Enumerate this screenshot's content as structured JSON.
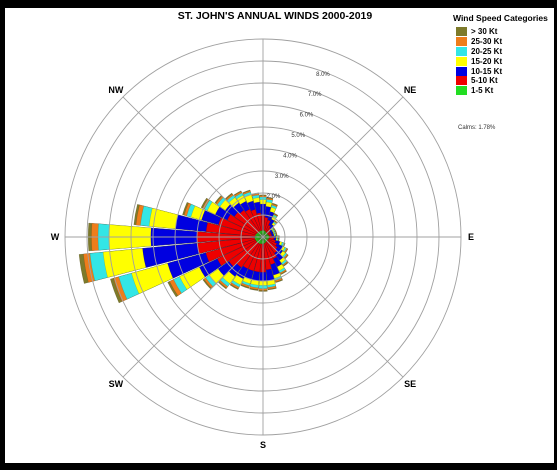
{
  "chart_data": {
    "type": "wind-rose",
    "title": "ST. JOHN'S ANNUAL WINDS 2000-2019",
    "legend_title": "Wind Speed Categories",
    "legend_position": "top-right",
    "calms_text": "Calms: 1.78%",
    "ring_labels": [
      "2.0%",
      "3.0%",
      "4.0%",
      "5.0%",
      "6.0%",
      "7.0%",
      "8.0%"
    ],
    "rings": [
      1,
      2,
      3,
      4,
      5,
      6,
      7,
      8,
      9
    ],
    "directions": [
      {
        "label": "NE",
        "angle": 45
      },
      {
        "label": "E",
        "angle": 90
      },
      {
        "label": "SE",
        "angle": 135
      },
      {
        "label": "S",
        "angle": 180
      },
      {
        "label": "SW",
        "angle": 225
      },
      {
        "label": "W",
        "angle": 270
      },
      {
        "label": "NW",
        "angle": 315
      }
    ],
    "categories": [
      {
        "name": "> 30 Kt",
        "color": "#7d7a2a"
      },
      {
        "name": "25-30 Kt",
        "color": "#ee7d1b"
      },
      {
        "name": "20-25 Kt",
        "color": "#33e6e6"
      },
      {
        "name": "15-20 Kt",
        "color": "#ffff00"
      },
      {
        "name": "10-15 Kt",
        "color": "#0000e0"
      },
      {
        "name": "5-10 Kt",
        "color": "#ee0000"
      },
      {
        "name": "1-5 Kt",
        "color": "#22dd22"
      }
    ],
    "sectors_deg": [
      0,
      10,
      20,
      30,
      40,
      50,
      60,
      70,
      80,
      90,
      100,
      110,
      120,
      130,
      140,
      150,
      160,
      170,
      180,
      190,
      200,
      210,
      220,
      230,
      240,
      250,
      260,
      270,
      280,
      290,
      300,
      310,
      320,
      330,
      340,
      350
    ],
    "series_cumulative_percent": [
      {
        "name": "1-5 Kt",
        "values": [
          0.3,
          0.3,
          0.28,
          0.26,
          0.24,
          0.24,
          0.24,
          0.26,
          0.28,
          0.28,
          0.28,
          0.26,
          0.24,
          0.24,
          0.24,
          0.26,
          0.28,
          0.3,
          0.3,
          0.32,
          0.32,
          0.34,
          0.34,
          0.36,
          0.36,
          0.36,
          0.38,
          0.38,
          0.36,
          0.34,
          0.32,
          0.3,
          0.3,
          0.3,
          0.3,
          0.3
        ]
      },
      {
        "name": "5-10 Kt",
        "values": [
          1.0,
          0.9,
          0.8,
          0.6,
          0.5,
          0.4,
          0.4,
          0.4,
          0.4,
          0.5,
          0.5,
          0.6,
          0.7,
          0.8,
          0.9,
          1.1,
          1.3,
          1.5,
          1.6,
          1.6,
          1.6,
          1.6,
          1.7,
          1.9,
          2.3,
          2.7,
          3.0,
          3.0,
          2.6,
          2.1,
          1.8,
          1.6,
          1.5,
          1.4,
          1.3,
          1.1
        ]
      },
      {
        "name": "10-15 Kt",
        "values": [
          1.5,
          1.4,
          1.2,
          0.9,
          0.7,
          0.5,
          0.5,
          0.5,
          0.5,
          0.6,
          0.6,
          0.8,
          1.0,
          1.1,
          1.3,
          1.5,
          1.8,
          2.0,
          2.0,
          2.0,
          2.0,
          2.1,
          2.2,
          2.5,
          3.2,
          4.5,
          5.5,
          5.1,
          4.0,
          2.9,
          2.4,
          2.1,
          1.9,
          1.8,
          1.7,
          1.6
        ]
      },
      {
        "name": "15-20 Kt",
        "values": [
          1.7,
          1.6,
          1.4,
          1.05,
          0.8,
          0.55,
          0.55,
          0.55,
          0.55,
          0.65,
          0.65,
          0.9,
          1.1,
          1.25,
          1.45,
          1.7,
          1.95,
          2.2,
          2.2,
          2.2,
          2.2,
          2.4,
          2.6,
          3.0,
          4.2,
          6.2,
          7.3,
          7.0,
          5.2,
          3.4,
          2.8,
          2.4,
          2.2,
          2.1,
          2.0,
          1.8
        ]
      },
      {
        "name": "20-25 Kt",
        "values": [
          1.82,
          1.72,
          1.5,
          1.12,
          0.86,
          0.6,
          0.6,
          0.6,
          0.6,
          0.7,
          0.7,
          0.98,
          1.18,
          1.33,
          1.55,
          1.8,
          2.05,
          2.3,
          2.35,
          2.32,
          2.3,
          2.52,
          2.76,
          3.2,
          4.5,
          6.8,
          7.9,
          7.5,
          5.6,
          3.6,
          2.95,
          2.55,
          2.33,
          2.22,
          2.12,
          1.92
        ]
      },
      {
        "name": "25-30 Kt",
        "values": [
          1.88,
          1.78,
          1.56,
          1.16,
          0.9,
          0.63,
          0.63,
          0.63,
          0.63,
          0.73,
          0.73,
          1.02,
          1.23,
          1.39,
          1.6,
          1.86,
          2.12,
          2.38,
          2.43,
          2.4,
          2.38,
          2.6,
          2.85,
          3.3,
          4.7,
          7.05,
          8.2,
          7.8,
          5.8,
          3.72,
          3.05,
          2.63,
          2.4,
          2.29,
          2.18,
          1.98
        ]
      },
      {
        "name": "> 30 Kt",
        "values": [
          1.92,
          1.82,
          1.6,
          1.2,
          0.93,
          0.65,
          0.65,
          0.65,
          0.65,
          0.75,
          0.75,
          1.05,
          1.26,
          1.42,
          1.64,
          1.9,
          2.16,
          2.42,
          2.48,
          2.45,
          2.43,
          2.65,
          2.9,
          3.36,
          4.8,
          7.2,
          8.4,
          7.95,
          5.9,
          3.8,
          3.12,
          2.69,
          2.45,
          2.33,
          2.22,
          2.02
        ]
      }
    ]
  }
}
